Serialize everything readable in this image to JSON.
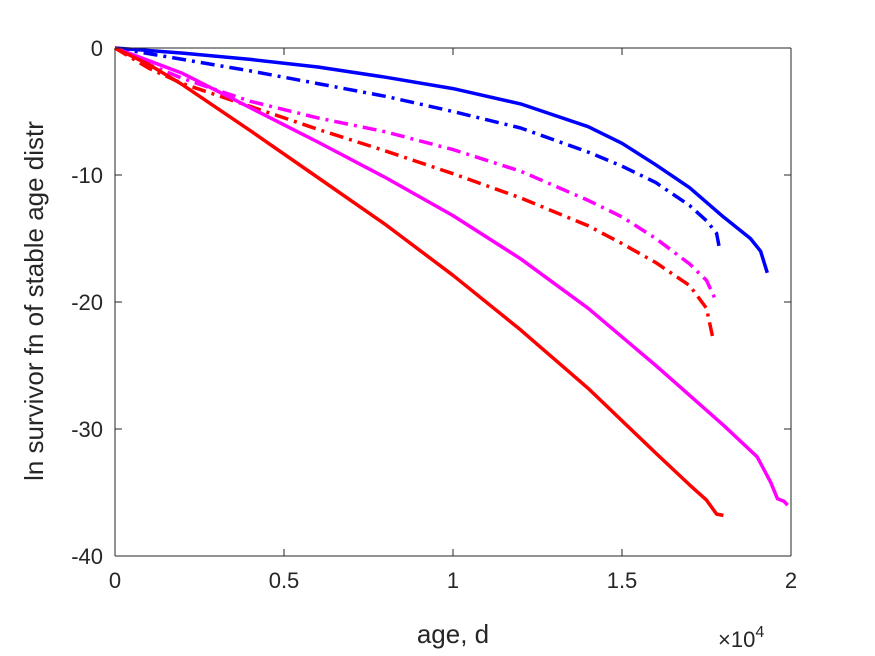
{
  "chart_data": {
    "type": "line",
    "title": "",
    "xlabel": "age, d",
    "ylabel": "ln survivor fn of stable age distr",
    "x_exponent_label": "×10",
    "x_exponent_power": "4",
    "xlim": [
      0,
      20000
    ],
    "ylim": [
      -40,
      0
    ],
    "x_ticks": [
      0,
      5000,
      10000,
      15000,
      20000
    ],
    "x_tick_labels": [
      "0",
      "0.5",
      "1",
      "1.5",
      "2"
    ],
    "y_ticks": [
      0,
      -10,
      -20,
      -30,
      -40
    ],
    "y_tick_labels": [
      "0",
      "-10",
      "-20",
      "-30",
      "-40"
    ],
    "grid": false,
    "series": [
      {
        "color": "#0000ff",
        "style": "solid",
        "x": [
          0,
          2000,
          4000,
          6000,
          8000,
          10000,
          12000,
          14000,
          15000,
          16000,
          17000,
          18000,
          18800,
          19100,
          19300
        ],
        "y": [
          0,
          -0.4,
          -0.9,
          -1.5,
          -2.3,
          -3.2,
          -4.4,
          -6.2,
          -7.5,
          -9.2,
          -11.0,
          -13.3,
          -15.0,
          -16.0,
          -17.7
        ]
      },
      {
        "color": "#0000ff",
        "style": "dashdot",
        "x": [
          0,
          2000,
          4000,
          6000,
          8000,
          10000,
          12000,
          14000,
          15000,
          16000,
          17000,
          17500,
          17800,
          17900
        ],
        "y": [
          0,
          -0.9,
          -1.8,
          -2.8,
          -3.8,
          -5.0,
          -6.3,
          -8.2,
          -9.3,
          -10.6,
          -12.4,
          -13.6,
          -14.6,
          -16.0
        ]
      },
      {
        "color": "#ff00ff",
        "style": "dashdot",
        "x": [
          0,
          1000,
          2000,
          4000,
          6000,
          8000,
          10000,
          12000,
          14000,
          15000,
          16000,
          17000,
          17500,
          17800
        ],
        "y": [
          0,
          -1.3,
          -2.4,
          -4.2,
          -5.5,
          -6.6,
          -8.0,
          -9.7,
          -12.0,
          -13.3,
          -15.0,
          -17.0,
          -18.3,
          -20.0
        ]
      },
      {
        "color": "#ff0000",
        "style": "dashdot",
        "x": [
          0,
          1000,
          2000,
          4000,
          6000,
          8000,
          10000,
          12000,
          14000,
          15000,
          16000,
          17000,
          17500,
          17700
        ],
        "y": [
          0,
          -1.6,
          -2.8,
          -4.6,
          -6.4,
          -8.1,
          -9.9,
          -11.8,
          -14.0,
          -15.4,
          -16.9,
          -18.7,
          -20.5,
          -23.0
        ]
      },
      {
        "color": "#ff00ff",
        "style": "solid",
        "x": [
          0,
          1000,
          2000,
          4000,
          6000,
          8000,
          10000,
          12000,
          14000,
          16000,
          18000,
          19000,
          19400,
          19600,
          19800,
          19900
        ],
        "y": [
          0,
          -1.0,
          -2.0,
          -4.7,
          -7.4,
          -10.2,
          -13.2,
          -16.6,
          -20.5,
          -25.0,
          -29.7,
          -32.2,
          -34.2,
          -35.5,
          -35.7,
          -36.0
        ]
      },
      {
        "color": "#ff0000",
        "style": "solid",
        "x": [
          0,
          1000,
          2000,
          4000,
          6000,
          8000,
          10000,
          12000,
          14000,
          16000,
          17000,
          17500,
          17800,
          18000
        ],
        "y": [
          0,
          -1.3,
          -2.9,
          -6.5,
          -10.2,
          -13.9,
          -17.9,
          -22.2,
          -26.8,
          -31.9,
          -34.4,
          -35.6,
          -36.7,
          -36.8
        ]
      }
    ]
  }
}
